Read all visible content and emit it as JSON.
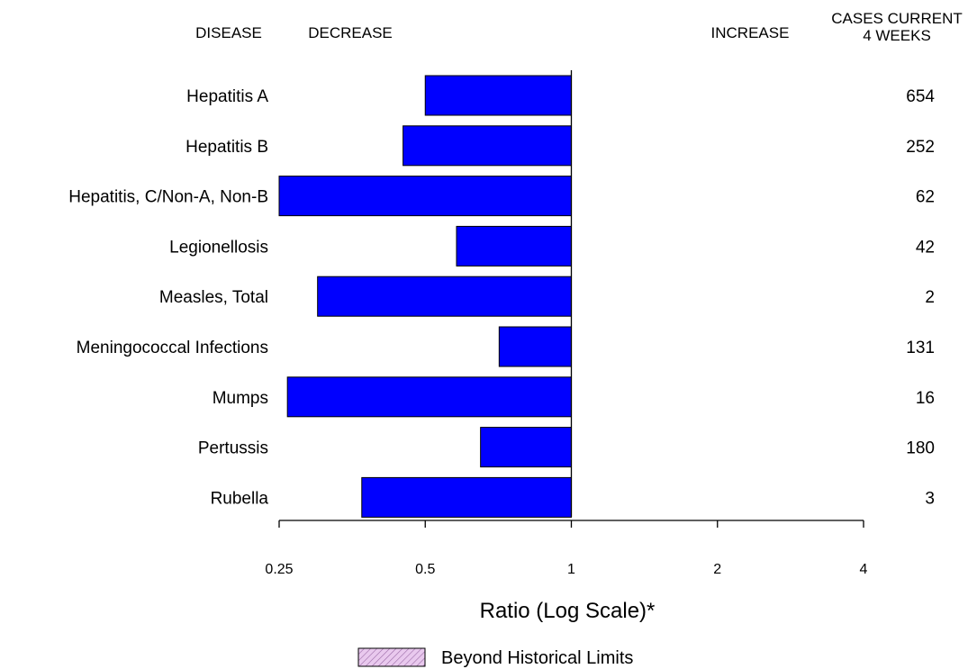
{
  "chart_data": {
    "type": "bar",
    "orientation": "horizontal",
    "scale": "log",
    "headers": {
      "disease": "DISEASE",
      "decrease": "DECREASE",
      "increase": "INCREASE",
      "cases_line1": "CASES CURRENT",
      "cases_line2": "4 WEEKS"
    },
    "categories": [
      "Hepatitis A",
      "Hepatitis B",
      "Hepatitis, C/Non-A, Non-B",
      "Legionellosis",
      "Measles, Total",
      "Meningococcal Infections",
      "Mumps",
      "Pertussis",
      "Rubella"
    ],
    "values": [
      0.5,
      0.45,
      0.25,
      0.58,
      0.3,
      0.71,
      0.26,
      0.65,
      0.37
    ],
    "cases": [
      "654",
      "252",
      "62",
      "42",
      "2",
      "131",
      "16",
      "180",
      "3"
    ],
    "xticks": [
      0.25,
      0.5,
      1,
      2,
      4
    ],
    "xtick_labels": [
      "0.25",
      "0.5",
      "1",
      "2",
      "4"
    ],
    "xlim": [
      0.25,
      4
    ],
    "reference_value": 1,
    "xlabel": "Ratio (Log Scale)*",
    "legend_label": "Beyond Historical Limits",
    "colors": {
      "bar": "#0000ff",
      "bar_stroke": "#000000",
      "legend_fill": "#e9c9ee",
      "legend_hatch": "#9a6aa6"
    }
  }
}
